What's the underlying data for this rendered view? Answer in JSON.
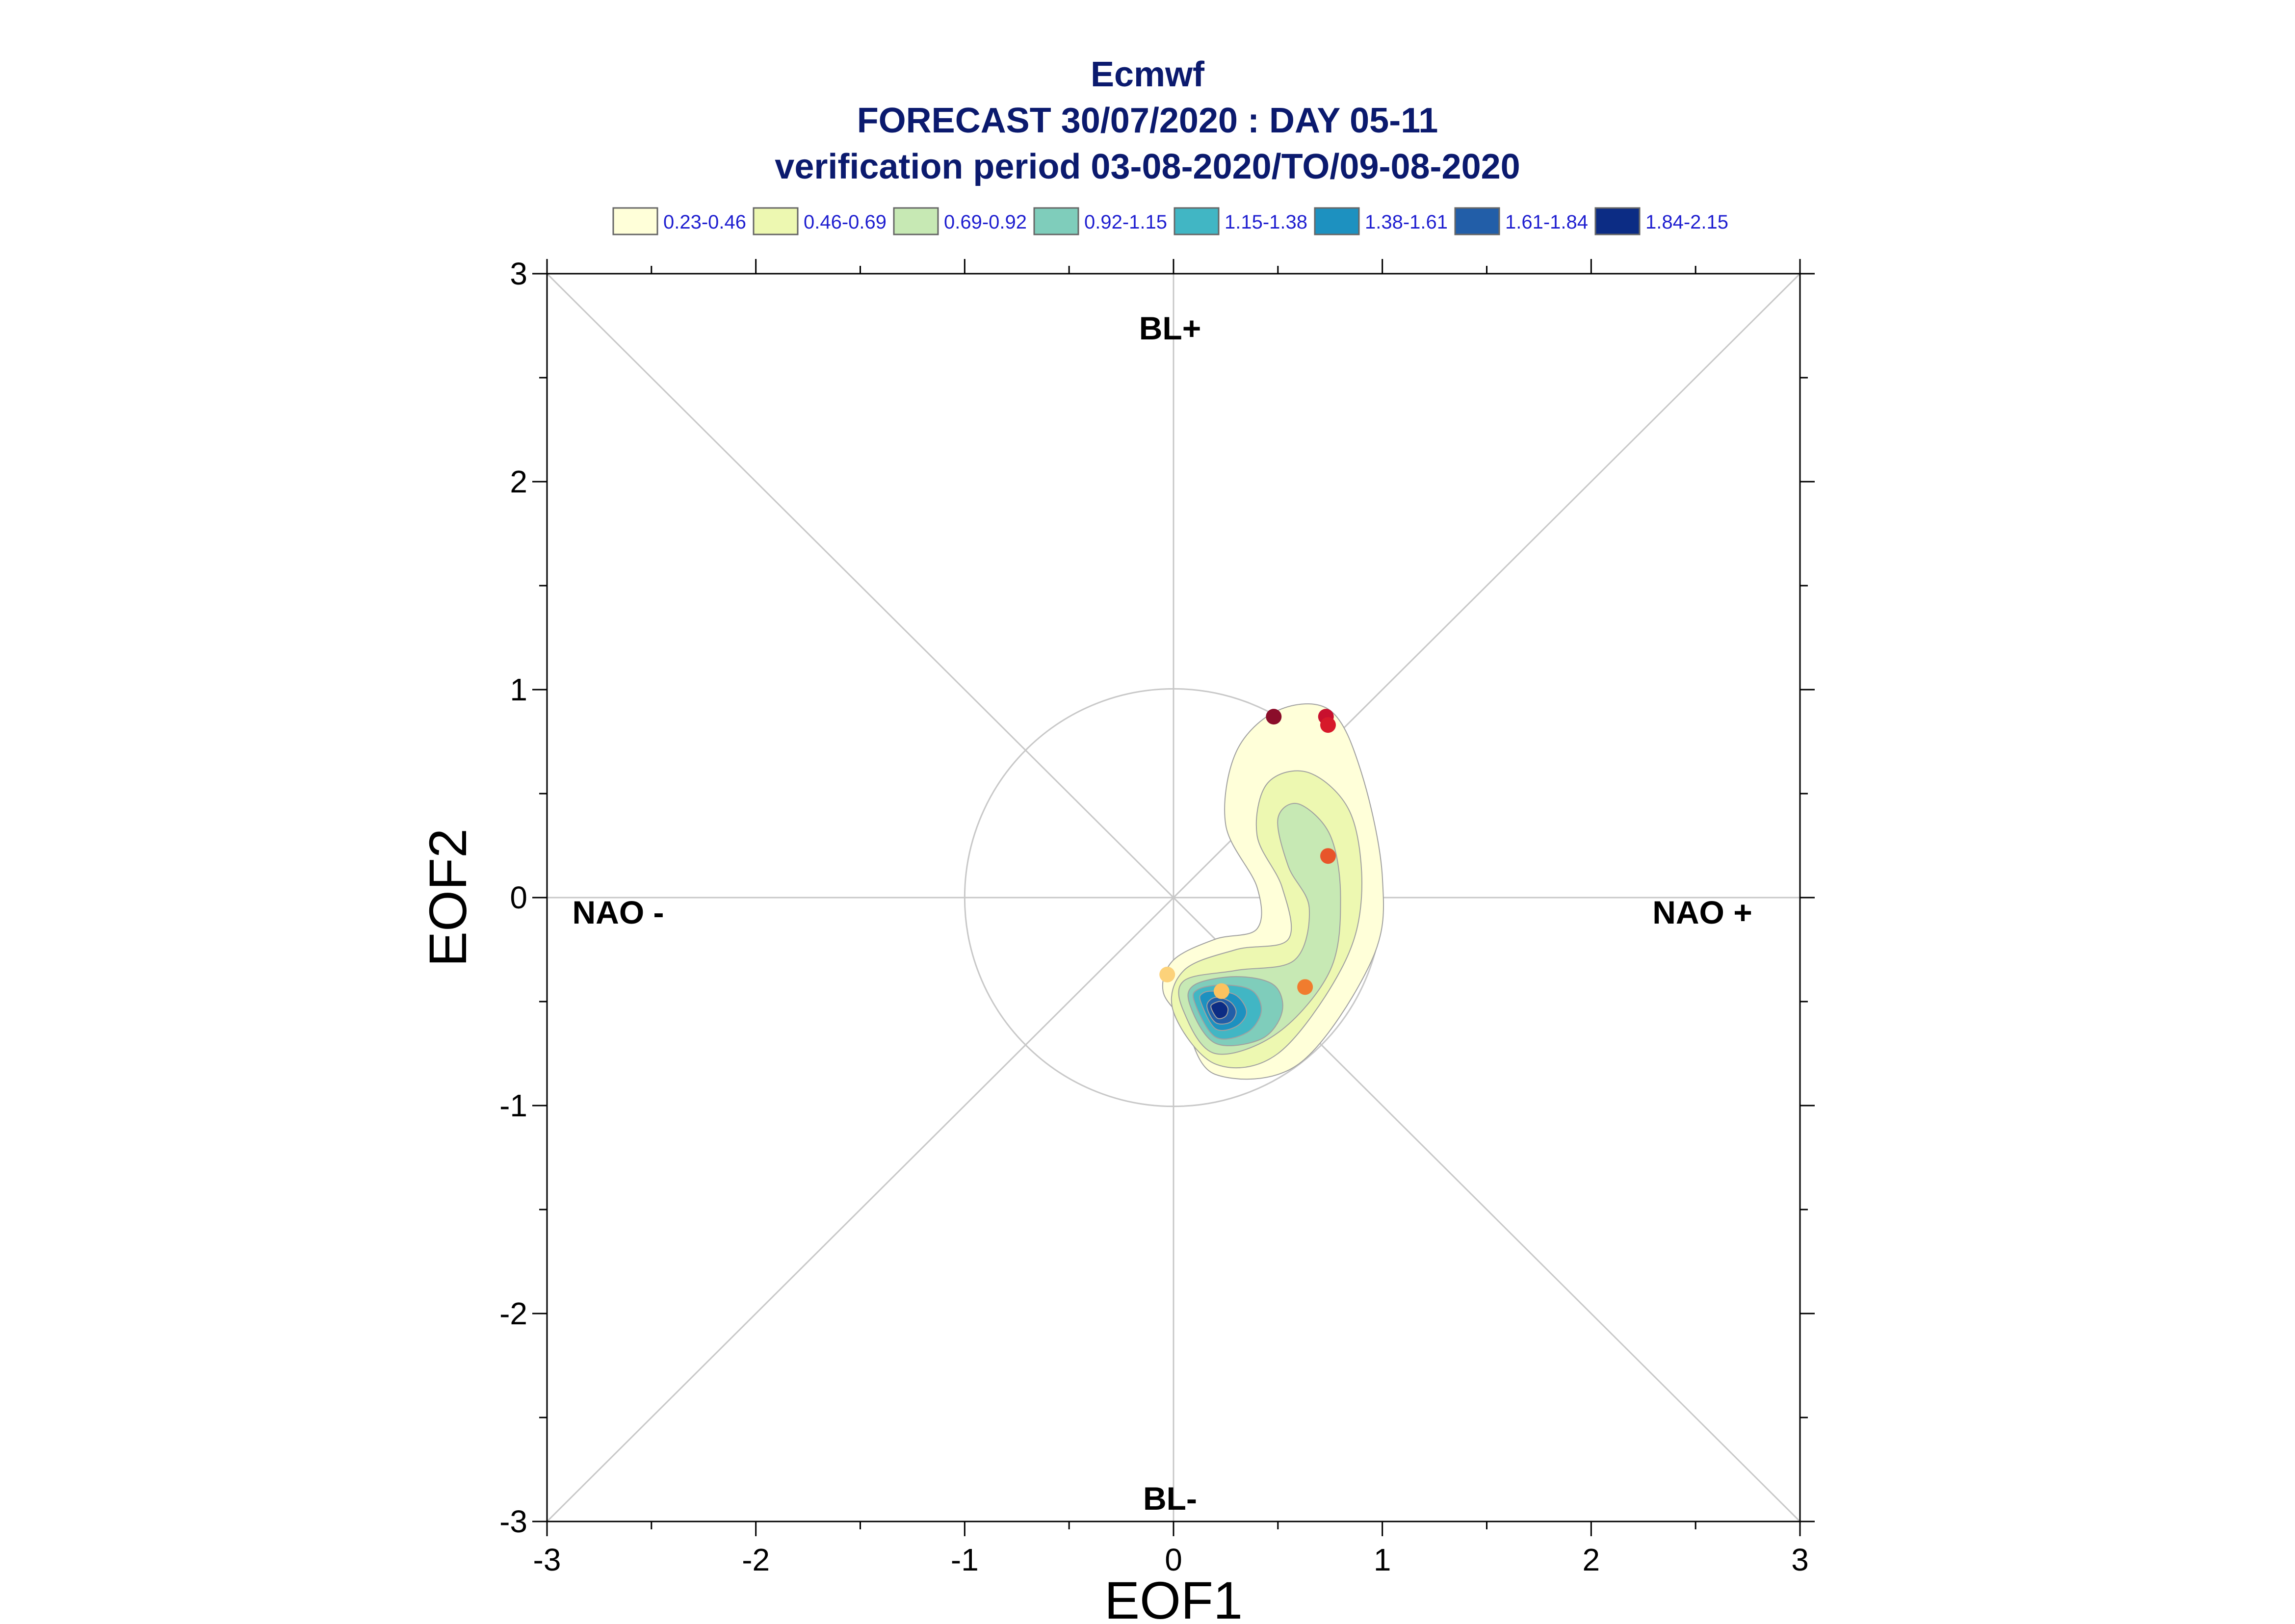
{
  "chart_data": {
    "type": "scatter",
    "title": "Ecmwf",
    "subtitle_1": "FORECAST 30/07/2020 : DAY 05-11",
    "subtitle_2": "verification period 03-08-2020/TO/09-08-2020",
    "xlabel": "EOF1",
    "ylabel": "EOF2",
    "xlim": [
      -3,
      3
    ],
    "ylim": [
      -3,
      3
    ],
    "x_ticks": [
      "-3",
      "-2",
      "-1",
      "0",
      "1",
      "2",
      "3"
    ],
    "y_ticks": [
      "-3",
      "-2",
      "-1",
      "0",
      "1",
      "2",
      "3"
    ],
    "region_labels": {
      "top": "BL+",
      "bottom": "BL-",
      "left": "NAO -",
      "right": "NAO +"
    },
    "legend": {
      "placement": "top",
      "levels": [
        {
          "label": "0.23-0.46",
          "color": "#ffffd9"
        },
        {
          "label": "0.46-0.69",
          "color": "#edf8b1"
        },
        {
          "label": "0.69-0.92",
          "color": "#c7e9b4"
        },
        {
          "label": "0.92-1.15",
          "color": "#7fcdbb"
        },
        {
          "label": "1.15-1.38",
          "color": "#41b6c4"
        },
        {
          "label": "1.38-1.61",
          "color": "#1d91c0"
        },
        {
          "label": "1.61-1.84",
          "color": "#225ea8"
        },
        {
          "label": "1.84-2.15",
          "color": "#0c2c84"
        }
      ]
    },
    "density_contours": [
      {
        "level": 1,
        "points": [
          [
            0.05,
            -0.6
          ],
          [
            0.2,
            -0.85
          ],
          [
            0.6,
            -0.8
          ],
          [
            0.95,
            -0.3
          ],
          [
            1.0,
            0.1
          ],
          [
            0.9,
            0.6
          ],
          [
            0.75,
            0.9
          ],
          [
            0.5,
            0.9
          ],
          [
            0.3,
            0.7
          ],
          [
            0.25,
            0.35
          ],
          [
            0.4,
            0.05
          ],
          [
            0.4,
            -0.15
          ],
          [
            0.2,
            -0.2
          ],
          [
            0.0,
            -0.3
          ],
          [
            -0.05,
            -0.45
          ]
        ]
      },
      {
        "level": 2,
        "points": [
          [
            0.0,
            -0.55
          ],
          [
            0.2,
            -0.8
          ],
          [
            0.5,
            -0.75
          ],
          [
            0.8,
            -0.35
          ],
          [
            0.9,
            0.0
          ],
          [
            0.85,
            0.4
          ],
          [
            0.65,
            0.6
          ],
          [
            0.45,
            0.55
          ],
          [
            0.4,
            0.3
          ],
          [
            0.52,
            0.05
          ],
          [
            0.55,
            -0.2
          ],
          [
            0.3,
            -0.25
          ],
          [
            0.05,
            -0.35
          ]
        ]
      },
      {
        "level": 3,
        "points": [
          [
            0.05,
            -0.55
          ],
          [
            0.2,
            -0.75
          ],
          [
            0.5,
            -0.65
          ],
          [
            0.75,
            -0.35
          ],
          [
            0.8,
            0.0
          ],
          [
            0.75,
            0.3
          ],
          [
            0.6,
            0.45
          ],
          [
            0.5,
            0.38
          ],
          [
            0.55,
            0.15
          ],
          [
            0.65,
            -0.05
          ],
          [
            0.58,
            -0.3
          ],
          [
            0.3,
            -0.35
          ],
          [
            0.05,
            -0.4
          ]
        ]
      },
      {
        "level": 4,
        "points": [
          [
            0.08,
            -0.52
          ],
          [
            0.2,
            -0.7
          ],
          [
            0.42,
            -0.68
          ],
          [
            0.52,
            -0.55
          ],
          [
            0.48,
            -0.42
          ],
          [
            0.3,
            -0.38
          ],
          [
            0.1,
            -0.42
          ]
        ]
      },
      {
        "level": 5,
        "points": [
          [
            0.1,
            -0.5
          ],
          [
            0.2,
            -0.67
          ],
          [
            0.35,
            -0.65
          ],
          [
            0.42,
            -0.55
          ],
          [
            0.38,
            -0.45
          ],
          [
            0.25,
            -0.42
          ],
          [
            0.12,
            -0.44
          ]
        ]
      },
      {
        "level": 6,
        "points": [
          [
            0.13,
            -0.5
          ],
          [
            0.2,
            -0.63
          ],
          [
            0.3,
            -0.62
          ],
          [
            0.35,
            -0.55
          ],
          [
            0.3,
            -0.47
          ],
          [
            0.2,
            -0.45
          ],
          [
            0.14,
            -0.46
          ]
        ]
      },
      {
        "level": 7,
        "points": [
          [
            0.16,
            -0.52
          ],
          [
            0.2,
            -0.6
          ],
          [
            0.27,
            -0.6
          ],
          [
            0.3,
            -0.55
          ],
          [
            0.27,
            -0.5
          ],
          [
            0.2,
            -0.48
          ]
        ]
      },
      {
        "level": 8,
        "points": [
          [
            0.18,
            -0.53
          ],
          [
            0.21,
            -0.58
          ],
          [
            0.25,
            -0.57
          ],
          [
            0.26,
            -0.53
          ],
          [
            0.23,
            -0.5
          ],
          [
            0.19,
            -0.51
          ]
        ]
      }
    ],
    "series": [
      {
        "values": [
          {
            "x": 0.48,
            "y": 0.87,
            "color": "#8b0d2a"
          },
          {
            "x": 0.73,
            "y": 0.87,
            "color": "#c8102e"
          },
          {
            "x": 0.74,
            "y": 0.83,
            "color": "#d7192a"
          },
          {
            "x": 0.74,
            "y": 0.2,
            "color": "#e8552a"
          },
          {
            "x": 0.63,
            "y": -0.43,
            "color": "#f07c2e"
          },
          {
            "x": -0.03,
            "y": -0.37,
            "color": "#fcd27a"
          },
          {
            "x": 0.23,
            "y": -0.45,
            "color": "#fcc25f"
          }
        ]
      }
    ],
    "grid": false
  }
}
